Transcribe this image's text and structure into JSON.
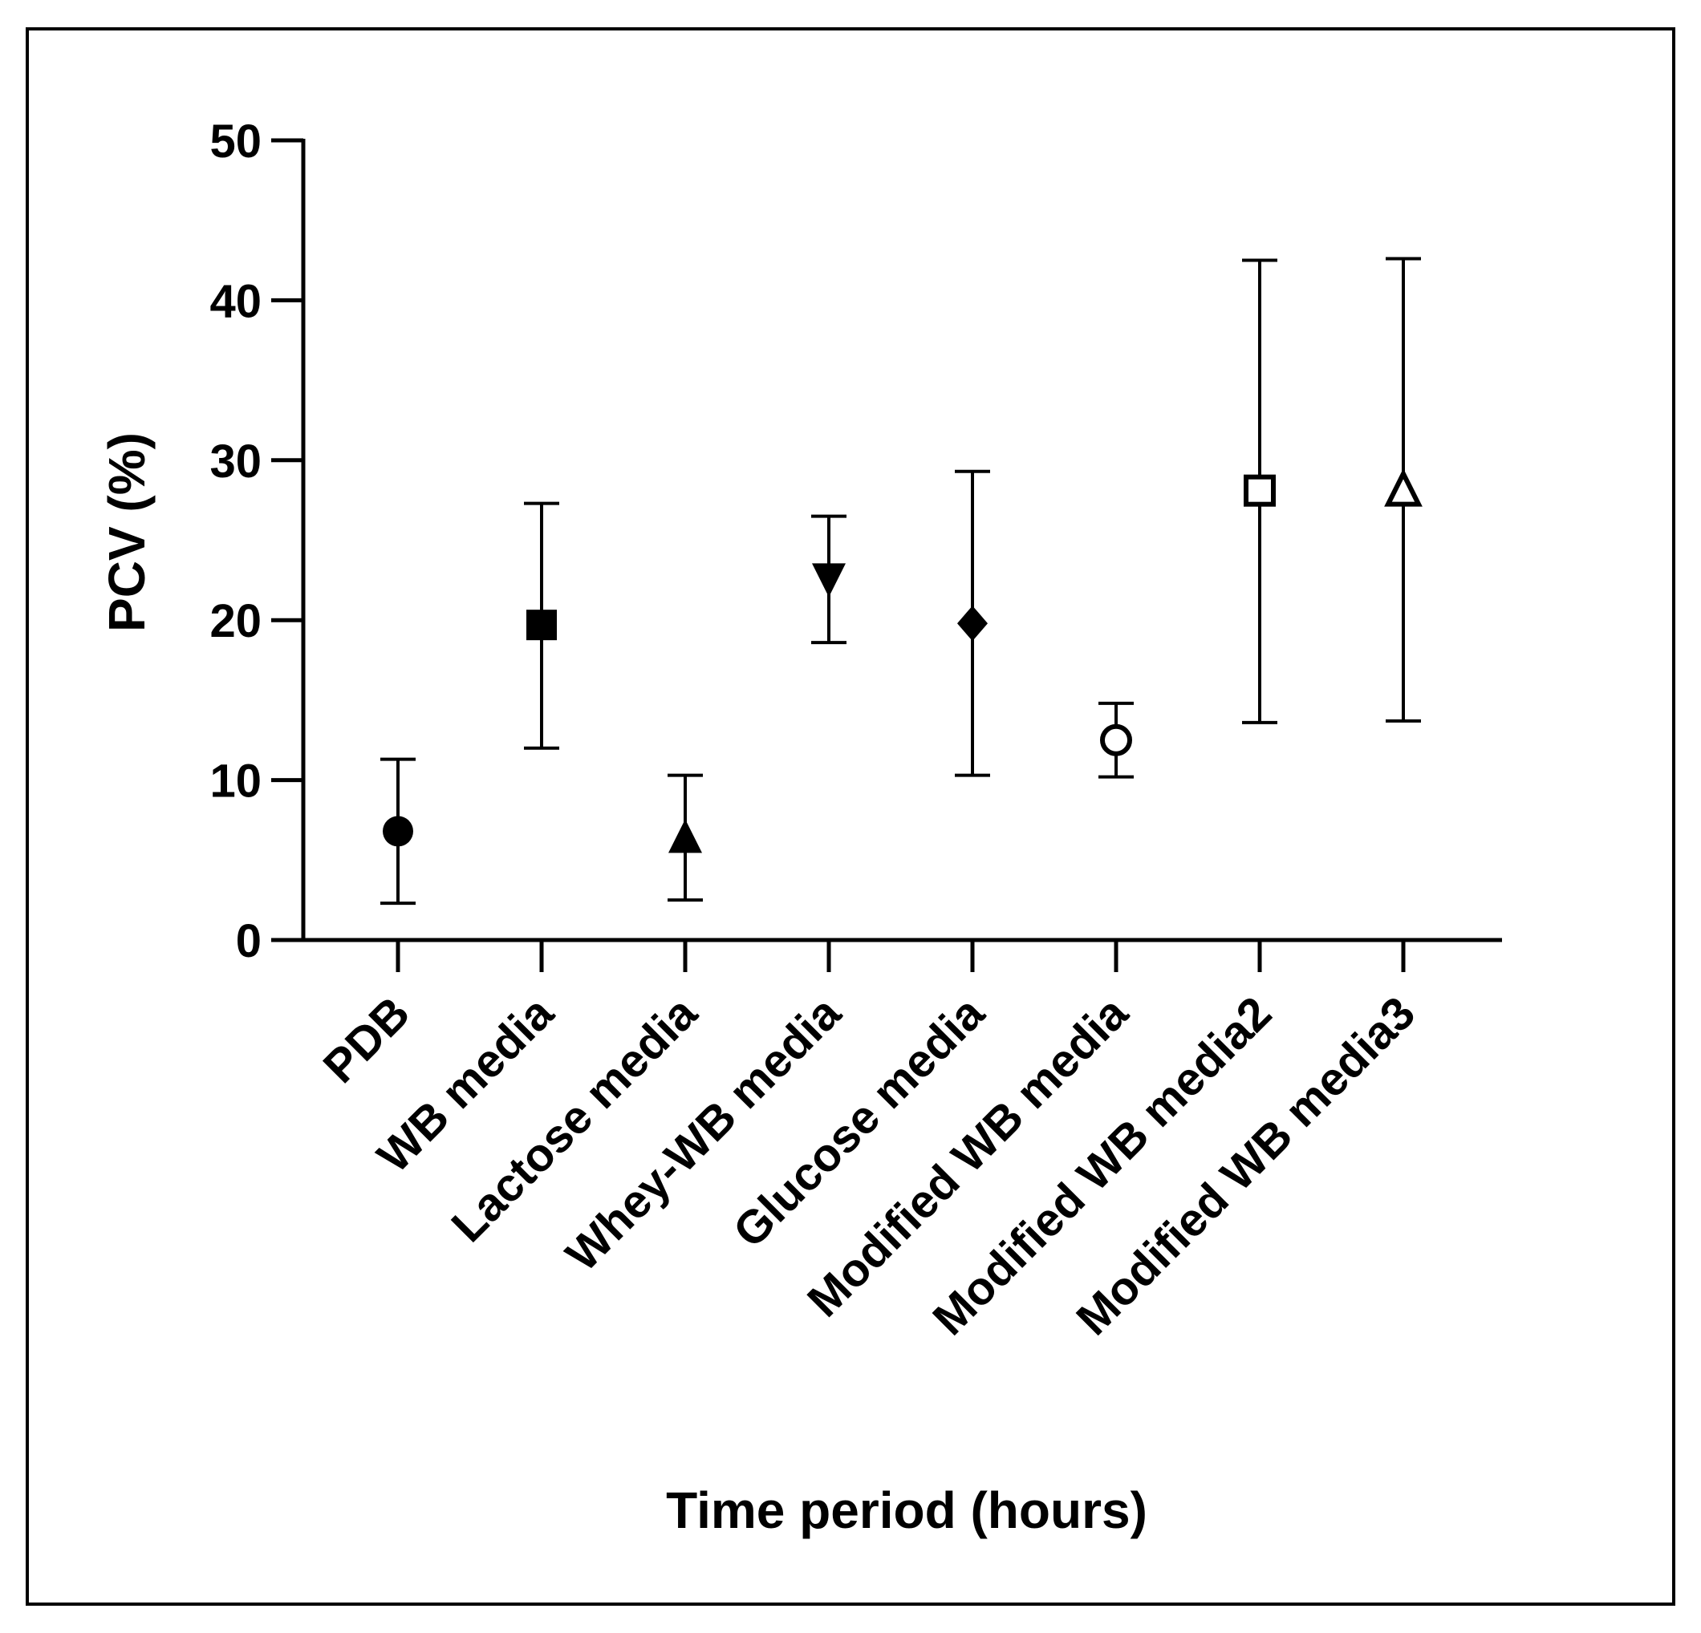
{
  "chart_data": {
    "type": "scatter",
    "title": "",
    "xlabel": "Time period (hours)",
    "ylabel": "PCV (%)",
    "ylim": [
      0,
      50
    ],
    "yticks": [
      0,
      10,
      20,
      30,
      40,
      50
    ],
    "categories": [
      "PDB",
      "WB media",
      "Lactose media",
      "Whey-WB media",
      "Glucose media",
      "Modified WB media",
      "Modified WB media2",
      "Modified WB media3"
    ],
    "points": [
      {
        "category": "PDB",
        "mean": 6.8,
        "err_low": 2.3,
        "err_high": 11.3,
        "marker": "circle-filled"
      },
      {
        "category": "WB media",
        "mean": 19.7,
        "err_low": 12.0,
        "err_high": 27.3,
        "marker": "square-filled"
      },
      {
        "category": "Lactose media",
        "mean": 6.4,
        "err_low": 2.5,
        "err_high": 10.3,
        "marker": "triangle-up-filled"
      },
      {
        "category": "Whey-WB media",
        "mean": 22.6,
        "err_low": 18.6,
        "err_high": 26.5,
        "marker": "triangle-down-filled"
      },
      {
        "category": "Glucose media",
        "mean": 19.8,
        "err_low": 10.3,
        "err_high": 29.3,
        "marker": "diamond-filled"
      },
      {
        "category": "Modified WB media",
        "mean": 12.5,
        "err_low": 10.2,
        "err_high": 14.8,
        "marker": "circle-open"
      },
      {
        "category": "Modified WB media2",
        "mean": 28.1,
        "err_low": 13.6,
        "err_high": 42.5,
        "marker": "square-open"
      },
      {
        "category": "Modified WB media3",
        "mean": 28.1,
        "err_low": 13.7,
        "err_high": 42.6,
        "marker": "triangle-up-open"
      }
    ],
    "grid": false,
    "legend": "none"
  }
}
